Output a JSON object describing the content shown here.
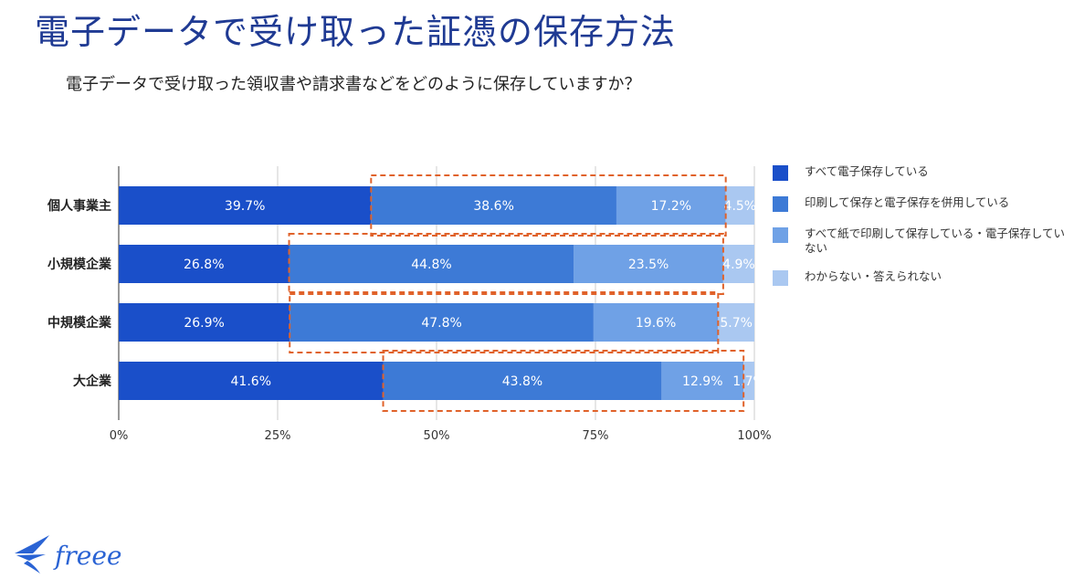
{
  "page": {
    "title": "電子データで受け取った証憑の保存方法",
    "subtitle": "電子データで受け取った領収書や請求書などをどのように保存していますか？",
    "brand": "freee"
  },
  "colors": {
    "title": "#1f3a93",
    "series": [
      "#1a4fc9",
      "#3d7ad6",
      "#6fa1e6",
      "#aac8f1"
    ],
    "highlight_box": "#e0622a",
    "logo": "#2a63d4"
  },
  "chart_data": {
    "type": "bar",
    "orientation": "horizontal",
    "stacked": true,
    "categories": [
      "個人事業主",
      "小規模企業",
      "中規模企業",
      "大企業"
    ],
    "series": [
      {
        "name": "すべて電子保存している",
        "values": [
          39.7,
          26.8,
          26.9,
          41.6
        ],
        "labels": [
          "39.7%",
          "26.8%",
          "26.9%",
          "41.6%"
        ]
      },
      {
        "name": "印刷して保存と電子保存を併用している",
        "values": [
          38.6,
          44.8,
          47.8,
          43.8
        ],
        "labels": [
          "38.6%",
          "44.8%",
          "47.8%",
          "43.8%"
        ]
      },
      {
        "name": "すべて紙で印刷して保存している・電子保存していない",
        "values": [
          17.2,
          23.5,
          19.6,
          12.9
        ],
        "labels": [
          "17.2%",
          "23.5%",
          "19.6%",
          "12.9%"
        ]
      },
      {
        "name": "わからない・答えられない",
        "values": [
          4.5,
          4.9,
          5.7,
          1.7
        ],
        "labels": [
          "4.5%",
          "4.9%",
          "5.7%",
          "1.7%"
        ]
      }
    ],
    "x_ticks": [
      "0%",
      "25%",
      "50%",
      "75%",
      "100%"
    ],
    "xlim": [
      0,
      100
    ],
    "grid": "vertical",
    "legend_position": "right",
    "highlight": "series 2-3 outlined with dashed box"
  }
}
